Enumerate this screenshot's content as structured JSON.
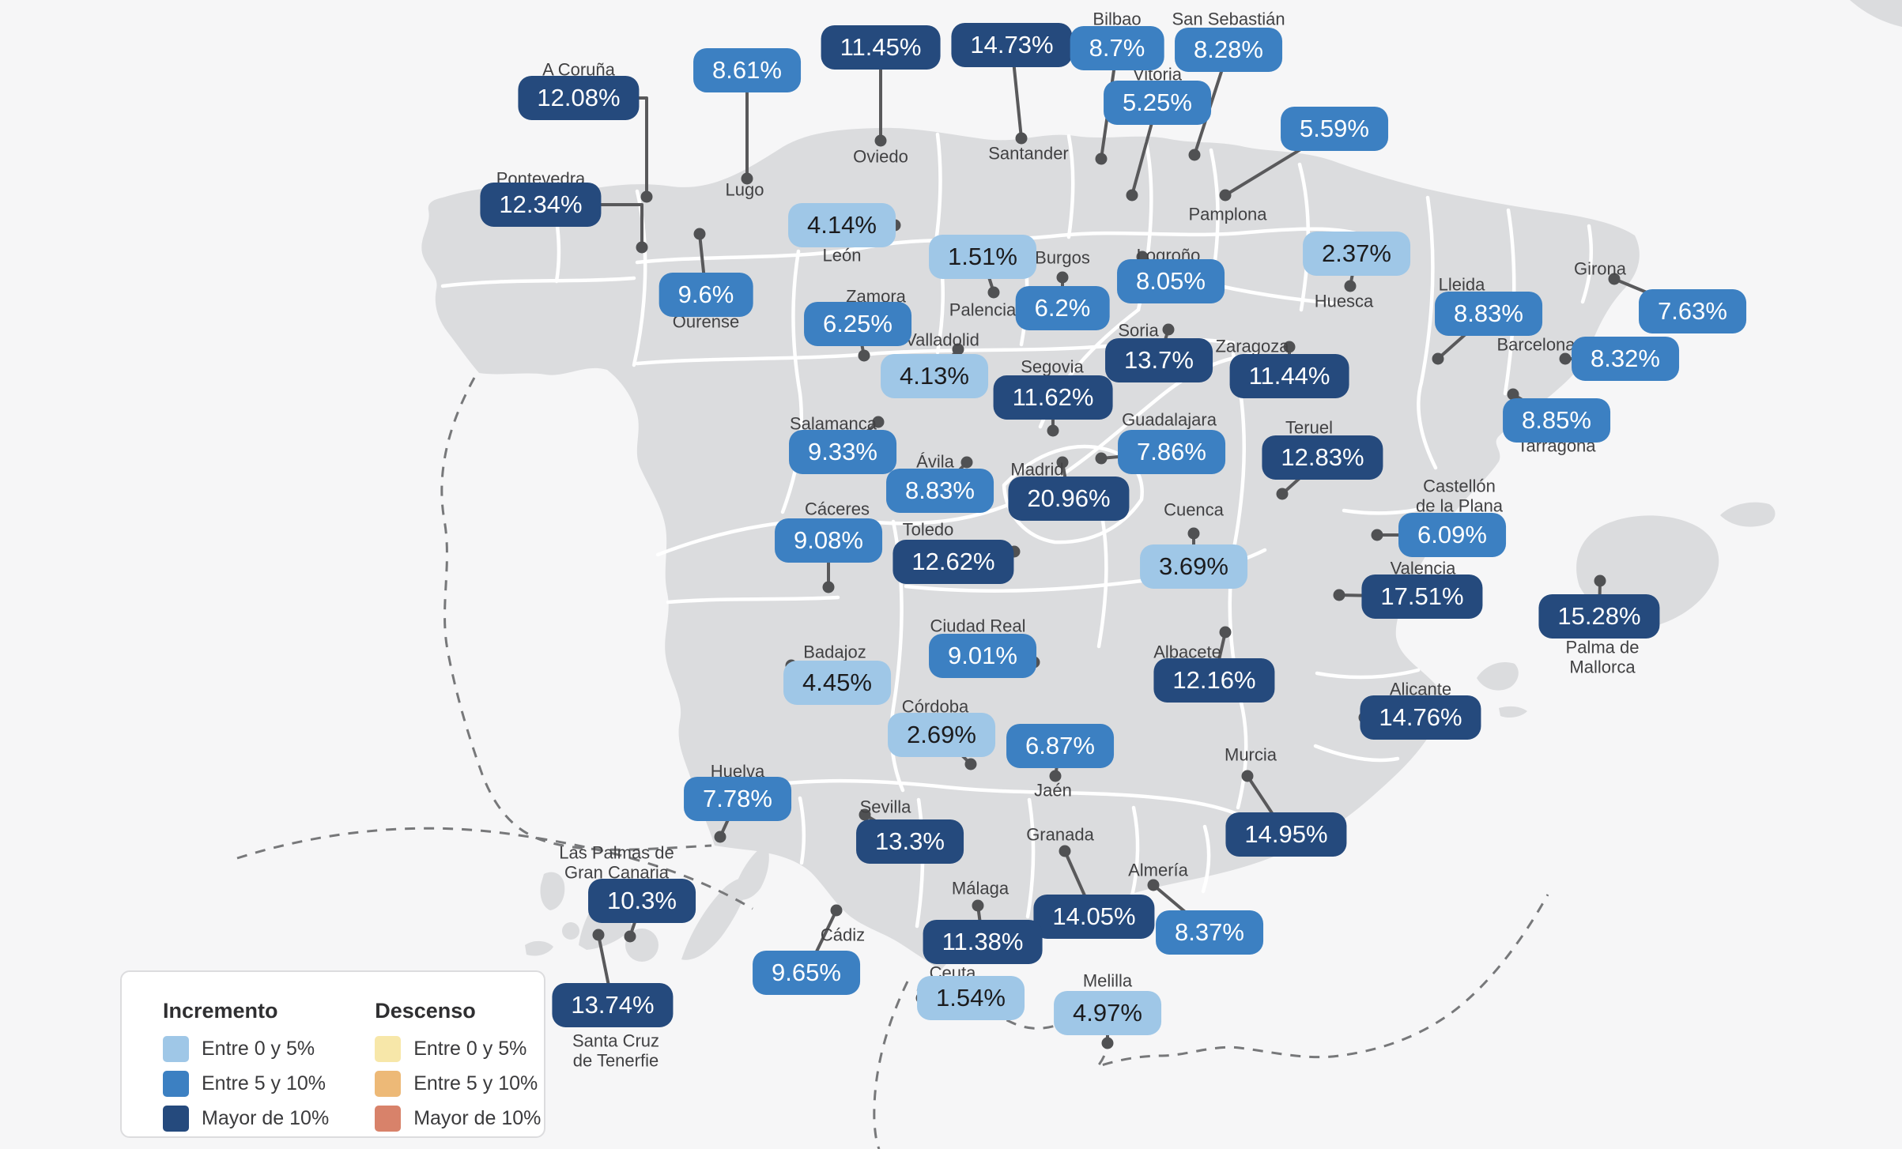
{
  "colors": {
    "background": "#f6f6f7",
    "land": "#dbdcde",
    "border": "#ffffff",
    "leader": "#59595b",
    "dot": "#505153",
    "dashed": "#77787a"
  },
  "categories": {
    "high": "#254a7d",
    "mid": "#3c80c2",
    "low": "#9fc7e7"
  },
  "legend": {
    "sections": [
      {
        "title": "Incremento",
        "items": [
          {
            "label": "Entre 0 y 5%",
            "color": "#9fc7e7"
          },
          {
            "label": "Entre 5 y 10%",
            "color": "#3c80c2"
          },
          {
            "label": "Mayor de 10%",
            "color": "#254a7d"
          }
        ]
      },
      {
        "title": "Descenso",
        "items": [
          {
            "label": "Entre 0 y 5%",
            "color": "#f7e7a9"
          },
          {
            "label": "Entre 5 y 10%",
            "color": "#edb977"
          },
          {
            "label": "Mayor de 10%",
            "color": "#d8826a"
          }
        ]
      }
    ]
  },
  "chart_data": {
    "type": "heatmap",
    "title": "",
    "legend_position": "bottom-left",
    "series": [
      {
        "name": "A Coruña",
        "value": 12.08
      },
      {
        "name": "Pontevedra",
        "value": 12.34
      },
      {
        "name": "Lugo",
        "value": 8.61
      },
      {
        "name": "Oviedo",
        "value": 11.45
      },
      {
        "name": "Santander",
        "value": 14.73
      },
      {
        "name": "Bilbao",
        "value": 8.7
      },
      {
        "name": "San Sebastián",
        "value": 8.28
      },
      {
        "name": "Vitoria",
        "value": 5.25
      },
      {
        "name": "Pamplona",
        "value": 5.59
      },
      {
        "name": "León",
        "value": 4.14
      },
      {
        "name": "Palencia",
        "value": 1.51
      },
      {
        "name": "Burgos",
        "value": 6.2
      },
      {
        "name": "Logroño",
        "value": 8.05
      },
      {
        "name": "Huesca",
        "value": 2.37
      },
      {
        "name": "Girona",
        "value": 7.63
      },
      {
        "name": "Lleida",
        "value": 8.83
      },
      {
        "name": "Barcelona",
        "value": 8.32
      },
      {
        "name": "Ourense",
        "value": 9.6
      },
      {
        "name": "Zamora",
        "value": 6.25
      },
      {
        "name": "Valladolid",
        "value": 4.13
      },
      {
        "name": "Soria",
        "value": 13.7
      },
      {
        "name": "Zaragoza",
        "value": 11.44
      },
      {
        "name": "Segovia",
        "value": 11.62
      },
      {
        "name": "Tarragona",
        "value": 8.85
      },
      {
        "name": "Salamanca",
        "value": 9.33
      },
      {
        "name": "Guadalajara",
        "value": 7.86
      },
      {
        "name": "Teruel",
        "value": 12.83
      },
      {
        "name": "Ávila",
        "value": 8.83
      },
      {
        "name": "Madrid",
        "value": 20.96
      },
      {
        "name": "Castellón de la Plana",
        "value": 6.09
      },
      {
        "name": "Cáceres",
        "value": 9.08
      },
      {
        "name": "Toledo",
        "value": 12.62
      },
      {
        "name": "Cuenca",
        "value": 3.69
      },
      {
        "name": "Valencia",
        "value": 17.51
      },
      {
        "name": "Palma de Mallorca",
        "value": 15.28
      },
      {
        "name": "Ciudad Real",
        "value": 9.01
      },
      {
        "name": "Badajoz",
        "value": 4.45
      },
      {
        "name": "Albacete",
        "value": 12.16
      },
      {
        "name": "Córdoba",
        "value": 2.69
      },
      {
        "name": "Jaén",
        "value": 6.87
      },
      {
        "name": "Alicante",
        "value": 14.76
      },
      {
        "name": "Murcia",
        "value": 14.95
      },
      {
        "name": "Huelva",
        "value": 7.78
      },
      {
        "name": "Sevilla",
        "value": 13.3
      },
      {
        "name": "Granada",
        "value": 14.05
      },
      {
        "name": "Almería",
        "value": 8.37
      },
      {
        "name": "Las Palmas de Gran Canaria",
        "value": 10.3
      },
      {
        "name": "Málaga",
        "value": 11.38
      },
      {
        "name": "Cádiz",
        "value": 9.65
      },
      {
        "name": "Ceuta",
        "value": 1.54
      },
      {
        "name": "Melilla",
        "value": 4.97
      },
      {
        "name": "Santa Cruz de Tenerfie",
        "value": 13.74
      }
    ]
  },
  "cities": [
    {
      "name": "A Coruña",
      "value": "12.08%",
      "cat": "high",
      "badge": [
        732,
        124
      ],
      "label": [
        732,
        89
      ],
      "dot": [
        818,
        249
      ],
      "elbow": true
    },
    {
      "name": "Pontevedra",
      "value": "12.34%",
      "cat": "high",
      "badge": [
        684,
        259
      ],
      "label": [
        684,
        227
      ],
      "dot": [
        812,
        313
      ],
      "elbow": true
    },
    {
      "name": "Lugo",
      "value": "8.61%",
      "cat": "mid",
      "badge": [
        945,
        89
      ],
      "label": [
        942,
        241
      ],
      "dot": [
        945,
        226
      ]
    },
    {
      "name": "Oviedo",
      "value": "11.45%",
      "cat": "high",
      "badge": [
        1114,
        60
      ],
      "label": [
        1114,
        199
      ],
      "dot": [
        1114,
        178
      ]
    },
    {
      "name": "Santander",
      "value": "14.73%",
      "cat": "high",
      "badge": [
        1280,
        57
      ],
      "label": [
        1301,
        195
      ],
      "dot": [
        1292,
        175
      ]
    },
    {
      "name": "Bilbao",
      "value": "8.7%",
      "cat": "mid",
      "badge": [
        1413,
        61
      ],
      "label": [
        1413,
        25
      ],
      "dot": [
        1393,
        201
      ]
    },
    {
      "name": "San Sebastián",
      "value": "8.28%",
      "cat": "mid",
      "badge": [
        1554,
        63
      ],
      "label": [
        1554,
        25
      ],
      "dot": [
        1511,
        196
      ]
    },
    {
      "name": "Vitoria",
      "value": "5.25%",
      "cat": "mid",
      "badge": [
        1464,
        130
      ],
      "label": [
        1464,
        95
      ],
      "dot": [
        1432,
        247
      ]
    },
    {
      "name": "Pamplona",
      "value": "5.59%",
      "cat": "mid",
      "badge": [
        1688,
        163
      ],
      "label": [
        1553,
        272
      ],
      "dot": [
        1550,
        247
      ]
    },
    {
      "name": "León",
      "value": "4.14%",
      "cat": "low",
      "badge": [
        1065,
        285
      ],
      "label": [
        1065,
        324
      ],
      "dot": [
        1132,
        285
      ]
    },
    {
      "name": "Palencia",
      "value": "1.51%",
      "cat": "low",
      "badge": [
        1243,
        325
      ],
      "label": [
        1243,
        393
      ],
      "dot": [
        1257,
        370
      ]
    },
    {
      "name": "Burgos",
      "value": "6.2%",
      "cat": "mid",
      "badge": [
        1344,
        390
      ],
      "label": [
        1344,
        327
      ],
      "dot": [
        1344,
        351
      ]
    },
    {
      "name": "Logroño",
      "value": "8.05%",
      "cat": "mid",
      "badge": [
        1481,
        356
      ],
      "label": [
        1478,
        324
      ],
      "dot": [
        1445,
        325
      ]
    },
    {
      "name": "Huesca",
      "value": "2.37%",
      "cat": "low",
      "badge": [
        1716,
        321
      ],
      "label": [
        1700,
        382
      ],
      "dot": [
        1708,
        362
      ]
    },
    {
      "name": "Girona",
      "value": "7.63%",
      "cat": "mid",
      "badge": [
        2141,
        394
      ],
      "label": [
        2024,
        341
      ],
      "dot": [
        2042,
        353
      ]
    },
    {
      "name": "Lleida",
      "value": "8.83%",
      "cat": "mid",
      "badge": [
        1883,
        397
      ],
      "label": [
        1849,
        361
      ],
      "dot": [
        1819,
        454
      ]
    },
    {
      "name": "Barcelona",
      "value": "8.32%",
      "cat": "mid",
      "badge": [
        2056,
        454
      ],
      "label": [
        1943,
        437
      ],
      "dot": [
        1980,
        454
      ]
    },
    {
      "name": "Ourense",
      "value": "9.6%",
      "cat": "mid",
      "badge": [
        893,
        373
      ],
      "label": [
        893,
        408
      ],
      "dot": [
        885,
        296
      ]
    },
    {
      "name": "Zamora",
      "value": "6.25%",
      "cat": "mid",
      "badge": [
        1085,
        410
      ],
      "label": [
        1108,
        376
      ],
      "dot": [
        1093,
        450
      ]
    },
    {
      "name": "Valladolid",
      "value": "4.13%",
      "cat": "low",
      "badge": [
        1182,
        476
      ],
      "label": [
        1192,
        431
      ],
      "dot": [
        1212,
        442
      ]
    },
    {
      "name": "Soria",
      "value": "13.7%",
      "cat": "high",
      "badge": [
        1466,
        456
      ],
      "label": [
        1440,
        419
      ],
      "dot": [
        1478,
        417
      ]
    },
    {
      "name": "Zaragoza",
      "value": "11.44%",
      "cat": "high",
      "badge": [
        1631,
        476
      ],
      "label": [
        1584,
        439
      ],
      "dot": [
        1631,
        439
      ]
    },
    {
      "name": "Segovia",
      "value": "11.62%",
      "cat": "high",
      "badge": [
        1332,
        503
      ],
      "label": [
        1331,
        465
      ],
      "dot": [
        1332,
        545
      ]
    },
    {
      "name": "Tarragona",
      "value": "8.85%",
      "cat": "mid",
      "badge": [
        1969,
        532
      ],
      "label": [
        1969,
        565
      ],
      "dot": [
        1914,
        499
      ]
    },
    {
      "name": "Salamanca",
      "value": "9.33%",
      "cat": "mid",
      "badge": [
        1066,
        572
      ],
      "label": [
        1054,
        537
      ],
      "dot": [
        1111,
        534
      ]
    },
    {
      "name": "Guadalajara",
      "value": "7.86%",
      "cat": "mid",
      "badge": [
        1482,
        572
      ],
      "label": [
        1479,
        532
      ],
      "dot": [
        1393,
        580
      ]
    },
    {
      "name": "Teruel",
      "value": "12.83%",
      "cat": "high",
      "badge": [
        1673,
        579
      ],
      "label": [
        1656,
        542
      ],
      "dot": [
        1622,
        625
      ]
    },
    {
      "name": "Ávila",
      "value": "8.83%",
      "cat": "mid",
      "badge": [
        1189,
        621
      ],
      "label": [
        1183,
        585
      ],
      "dot": [
        1223,
        585
      ]
    },
    {
      "name": "Madrid",
      "value": "20.96%",
      "cat": "high",
      "badge": [
        1352,
        631
      ],
      "label": [
        1312,
        595
      ],
      "dot": [
        1344,
        585
      ]
    },
    {
      "name": "Castellón\nde la Plana",
      "value": "6.09%",
      "cat": "mid",
      "badge": [
        1837,
        677
      ],
      "label": [
        1846,
        628
      ],
      "dot": [
        1742,
        677
      ]
    },
    {
      "name": "Cáceres",
      "value": "9.08%",
      "cat": "mid",
      "badge": [
        1048,
        684
      ],
      "label": [
        1059,
        645
      ],
      "dot": [
        1048,
        743
      ]
    },
    {
      "name": "Toledo",
      "value": "12.62%",
      "cat": "high",
      "badge": [
        1206,
        711
      ],
      "label": [
        1174,
        671
      ],
      "dot": [
        1283,
        698
      ]
    },
    {
      "name": "Cuenca",
      "value": "3.69%",
      "cat": "low",
      "badge": [
        1510,
        717
      ],
      "label": [
        1510,
        646
      ],
      "dot": [
        1510,
        675
      ]
    },
    {
      "name": "Valencia",
      "value": "17.51%",
      "cat": "high",
      "badge": [
        1799,
        755
      ],
      "label": [
        1800,
        720
      ],
      "dot": [
        1694,
        753
      ]
    },
    {
      "name": "Palma de\nMallorca",
      "value": "15.28%",
      "cat": "high",
      "badge": [
        2023,
        780
      ],
      "label": [
        2027,
        832
      ],
      "dot": [
        2024,
        735
      ]
    },
    {
      "name": "Ciudad Real",
      "value": "9.01%",
      "cat": "mid",
      "badge": [
        1243,
        830
      ],
      "label": [
        1237,
        793
      ],
      "dot": [
        1308,
        838
      ]
    },
    {
      "name": "Badajoz",
      "value": "4.45%",
      "cat": "low",
      "badge": [
        1059,
        864
      ],
      "label": [
        1056,
        826
      ],
      "dot": [
        1001,
        842
      ]
    },
    {
      "name": "Albacete",
      "value": "12.16%",
      "cat": "high",
      "badge": [
        1536,
        861
      ],
      "label": [
        1502,
        826
      ],
      "dot": [
        1550,
        800
      ]
    },
    {
      "name": "Córdoba",
      "value": "2.69%",
      "cat": "low",
      "badge": [
        1191,
        930
      ],
      "label": [
        1183,
        895
      ],
      "dot": [
        1228,
        967
      ]
    },
    {
      "name": "Jaén",
      "value": "6.87%",
      "cat": "mid",
      "badge": [
        1341,
        944
      ],
      "label": [
        1332,
        1001
      ],
      "dot": [
        1335,
        982
      ]
    },
    {
      "name": "Alicante",
      "value": "14.76%",
      "cat": "high",
      "badge": [
        1797,
        908
      ],
      "label": [
        1797,
        873
      ],
      "dot": [
        1726,
        908
      ]
    },
    {
      "name": "Murcia",
      "value": "14.95%",
      "cat": "high",
      "badge": [
        1627,
        1056
      ],
      "label": [
        1582,
        956
      ],
      "dot": [
        1578,
        982
      ]
    },
    {
      "name": "Huelva",
      "value": "7.78%",
      "cat": "mid",
      "badge": [
        933,
        1011
      ],
      "label": [
        933,
        977
      ],
      "dot": [
        911,
        1059
      ]
    },
    {
      "name": "Sevilla",
      "value": "13.3%",
      "cat": "high",
      "badge": [
        1151,
        1065
      ],
      "label": [
        1120,
        1022
      ],
      "dot": [
        1094,
        1031
      ]
    },
    {
      "name": "Granada",
      "value": "14.05%",
      "cat": "high",
      "badge": [
        1384,
        1160
      ],
      "label": [
        1341,
        1057
      ],
      "dot": [
        1347,
        1077
      ]
    },
    {
      "name": "Almería",
      "value": "8.37%",
      "cat": "mid",
      "badge": [
        1530,
        1180
      ],
      "label": [
        1465,
        1102
      ],
      "dot": [
        1459,
        1120
      ]
    },
    {
      "name": "Las Palmas de\nGran Canaria",
      "value": "10.3%",
      "cat": "high",
      "badge": [
        812,
        1140
      ],
      "label": [
        780,
        1092
      ],
      "dot": [
        797,
        1185
      ]
    },
    {
      "name": "Málaga",
      "value": "11.38%",
      "cat": "high",
      "badge": [
        1243,
        1192
      ],
      "label": [
        1240,
        1125
      ],
      "dot": [
        1237,
        1146
      ]
    },
    {
      "name": "Cádiz",
      "value": "9.65%",
      "cat": "mid",
      "badge": [
        1020,
        1231
      ],
      "label": [
        1066,
        1184
      ],
      "dot": [
        1058,
        1152
      ]
    },
    {
      "name": "Ceuta",
      "value": "1.54%",
      "cat": "low",
      "badge": [
        1228,
        1263
      ],
      "label": [
        1205,
        1232
      ],
      "dot": [
        1166,
        1263
      ]
    },
    {
      "name": "Melilla",
      "value": "4.97%",
      "cat": "low",
      "badge": [
        1401,
        1282
      ],
      "label": [
        1401,
        1242
      ],
      "dot": [
        1401,
        1320
      ]
    },
    {
      "name": "Santa Cruz\nde Tenerfie",
      "value": "13.74%",
      "cat": "high",
      "badge": [
        775,
        1272
      ],
      "label": [
        779,
        1330
      ],
      "dot": [
        757,
        1183
      ]
    }
  ]
}
